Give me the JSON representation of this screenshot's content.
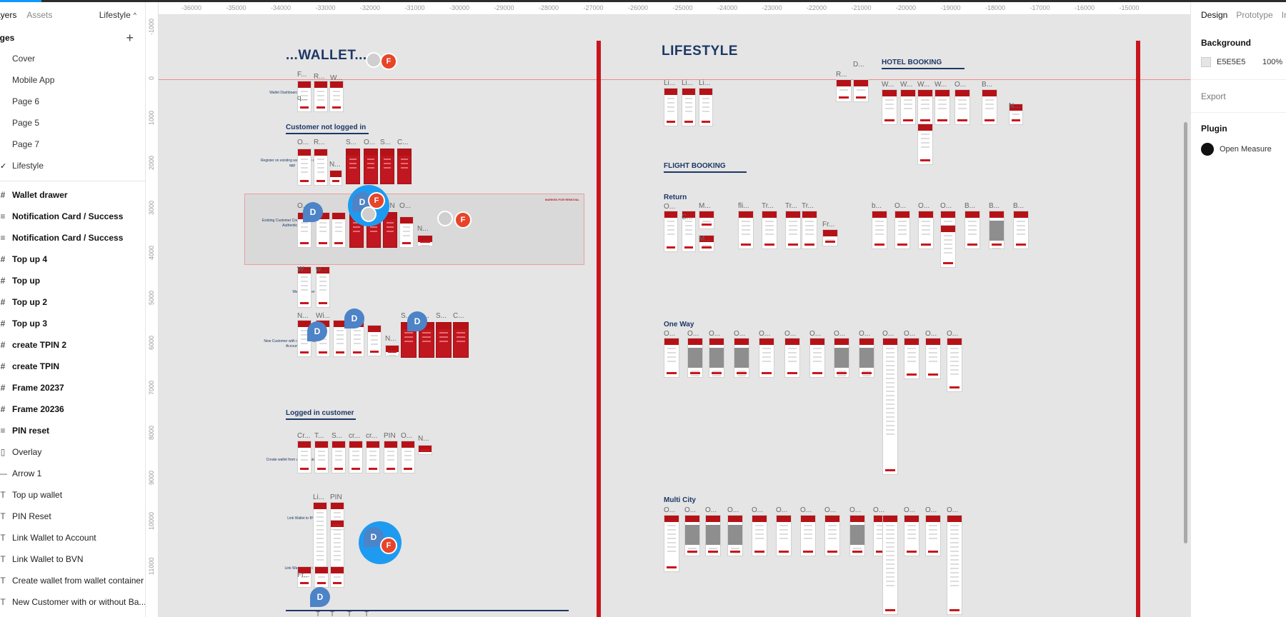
{
  "left_panel": {
    "tabs": {
      "layers": "ayers",
      "assets": "Assets"
    },
    "current_page": "Lifestyle",
    "pages_heading": "ages",
    "pages": [
      "Cover",
      "Mobile  App",
      "Page 6",
      "Page 5",
      "Page 7",
      "Lifestyle"
    ],
    "layers": [
      {
        "label": "Wallet drawer",
        "icon": "#",
        "bold": true
      },
      {
        "label": "Notification Card / Success",
        "icon": "≡",
        "bold": true
      },
      {
        "label": "Notification Card / Success",
        "icon": "≡",
        "bold": true
      },
      {
        "label": "Top up 4",
        "icon": "#",
        "bold": true
      },
      {
        "label": "Top up",
        "icon": "#",
        "bold": true
      },
      {
        "label": "Top up 2",
        "icon": "#",
        "bold": true
      },
      {
        "label": "Top up 3",
        "icon": "#",
        "bold": true
      },
      {
        "label": "create TPIN 2",
        "icon": "#",
        "bold": true
      },
      {
        "label": "create TPIN",
        "icon": "#",
        "bold": true
      },
      {
        "label": "Frame 20237",
        "icon": "#",
        "bold": true
      },
      {
        "label": "Frame 20236",
        "icon": "#",
        "bold": true
      },
      {
        "label": "PIN reset",
        "icon": "≡",
        "bold": true
      },
      {
        "label": "Overlay",
        "icon": "▯",
        "bold": false
      },
      {
        "label": "Arrow 1",
        "icon": "—",
        "bold": false
      },
      {
        "label": "Top up wallet",
        "icon": "T",
        "bold": false
      },
      {
        "label": "PIN Reset",
        "icon": "T",
        "bold": false
      },
      {
        "label": "Link Wallet to Account",
        "icon": "T",
        "bold": false
      },
      {
        "label": "Link Wallet to BVN",
        "icon": "T",
        "bold": false
      },
      {
        "label": "Create wallet from wallet container",
        "icon": "T",
        "bold": false
      },
      {
        "label": "New Customer with or without Ba...",
        "icon": "T",
        "bold": false
      }
    ]
  },
  "ruler": {
    "top": [
      "-36000",
      "-35000",
      "-34000",
      "-33000",
      "-32000",
      "-31000",
      "-30000",
      "-29000",
      "-28000",
      "-27000",
      "-26000",
      "-25000",
      "-24000",
      "-23000",
      "-22000",
      "-21000",
      "-20000",
      "-19000",
      "-18000",
      "-17000",
      "-16000",
      "-15000"
    ],
    "left": [
      "-1000",
      "0",
      "1000",
      "2000",
      "3000",
      "4000",
      "5000",
      "6000",
      "7000",
      "8000",
      "9000",
      "10000",
      "11000"
    ]
  },
  "canvas": {
    "wallet_title": "...WALLET...",
    "lifestyle_title": "LIFESTYLE",
    "customer_not_logged_in": "Customer not logged in",
    "logged_in_customer": "Logged in customer",
    "hotel_booking": "HOTEL BOOKING",
    "flight_booking": "FLIGHT BOOKING",
    "return": "Return",
    "one_way": "One Way",
    "multi_city": "Multi City",
    "marked_for_removal": "MARKED FOR REMOVAL",
    "flow_labels": {
      "wallet_dashboard": "Wallet Dashboard",
      "register": "Register on existing wallet to the mobile app",
      "existing_customer": "Existing Customer Create wallet without Authentication",
      "wallet_drawer": "Wallet Drawer",
      "new_customer": "New Customer with or without Bank Account",
      "create_wallet": "Create wallet from wallet container",
      "link_bvn": "Link Wallet to BVN",
      "link_account": "Link Wallet to Account"
    },
    "cursors": {
      "d": "D",
      "f": "F"
    }
  },
  "right_panel": {
    "tabs": {
      "design": "Design",
      "prototype": "Prototype",
      "inspect": "In"
    },
    "background_label": "Background",
    "background_hex": "E5E5E5",
    "background_opacity": "100%",
    "export_label": "Export",
    "plugin_label": "Plugin",
    "plugin_name": "Open Measure"
  },
  "colors": {
    "canvas_bg": "#e5e5e5",
    "accent_red": "#c8161d",
    "title_navy": "#1d3866",
    "cursor_blue": "#1e9bf0"
  }
}
